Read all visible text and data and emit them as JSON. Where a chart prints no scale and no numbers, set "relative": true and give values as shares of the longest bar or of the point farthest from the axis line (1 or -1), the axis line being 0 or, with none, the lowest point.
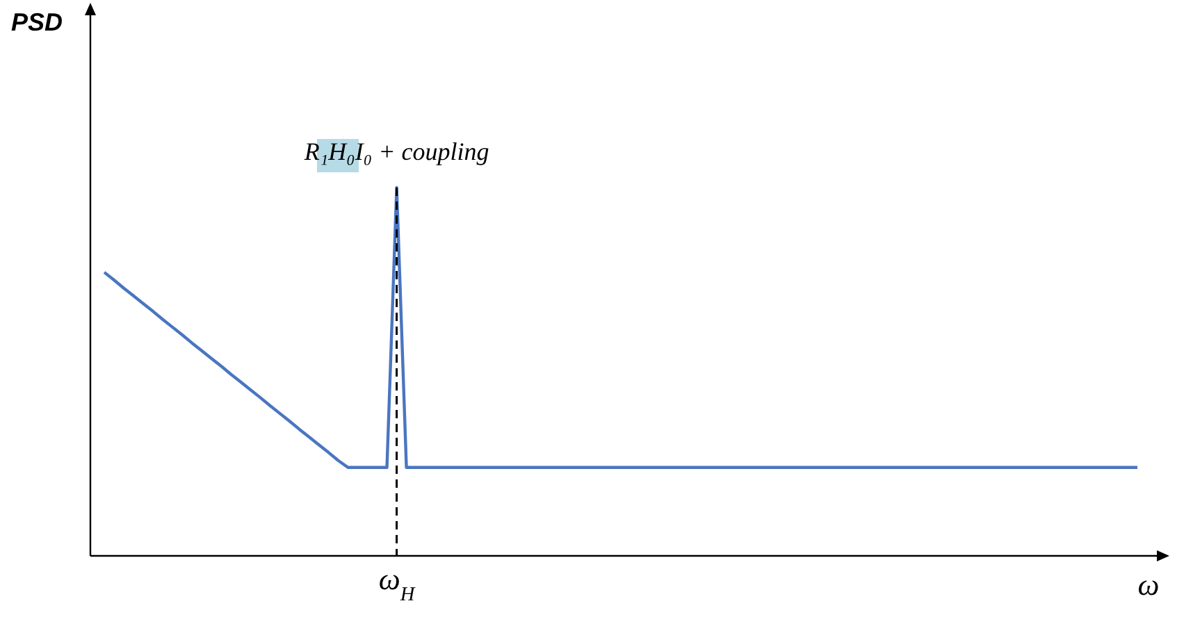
{
  "chart_data": {
    "type": "line",
    "relative": true,
    "xlabel": "ω",
    "grid": false,
    "marker": "none",
    "line_style": "solid",
    "categories": [
      null,
      null,
      null,
      null,
      null,
      null,
      null,
      null,
      null,
      null,
      null,
      null,
      null,
      null,
      null,
      null,
      null,
      null,
      null,
      null,
      null,
      null,
      null,
      null,
      null,
      null,
      null,
      null,
      null,
      null,
      null,
      null,
      null,
      null,
      null,
      null,
      null,
      null,
      null,
      null,
      null,
      null,
      null,
      null,
      null,
      null,
      null,
      null,
      null,
      null,
      null,
      null,
      null,
      null,
      null,
      null,
      null,
      null,
      null,
      null,
      null,
      null,
      null,
      null,
      null,
      null,
      null,
      null,
      null,
      null,
      null,
      null,
      null,
      null,
      null,
      null,
      null,
      null,
      null,
      null,
      null,
      null,
      null,
      null,
      null,
      null,
      null,
      null,
      null,
      null,
      null,
      null,
      null,
      null,
      null,
      null,
      null,
      null,
      null,
      null,
      null,
      null,
      null,
      null,
      null,
      null,
      null
    ],
    "series": [
      {
        "color": "#4a76c0",
        "values": [
          0.77,
          0.749,
          0.727,
          0.706,
          0.685,
          0.664,
          0.642,
          0.621,
          0.6,
          0.578,
          0.557,
          0.536,
          0.515,
          0.493,
          0.472,
          0.451,
          0.43,
          0.408,
          0.387,
          0.366,
          0.344,
          0.323,
          0.302,
          0.281,
          0.259,
          0.24,
          0.24,
          0.24,
          0.24,
          0.24,
          1,
          0.24,
          0.24,
          0.24,
          0.24,
          0.24,
          0.24,
          0.24,
          0.24,
          0.24,
          0.24,
          0.24,
          0.24,
          0.24,
          0.24,
          0.24,
          0.24,
          0.24,
          0.24,
          0.24,
          0.24,
          0.24,
          0.24,
          0.24,
          0.24,
          0.24,
          0.24,
          0.24,
          0.24,
          0.24,
          0.24,
          0.24,
          0.24,
          0.24,
          0.24,
          0.24,
          0.24,
          0.24,
          0.24,
          0.24,
          0.24,
          0.24,
          0.24,
          0.24,
          0.24,
          0.24,
          0.24,
          0.24,
          0.24,
          0.24,
          0.24,
          0.24,
          0.24,
          0.24,
          0.24,
          0.24,
          0.24,
          0.24,
          0.24,
          0.24,
          0.24,
          0.24,
          0.24,
          0.24,
          0.24,
          0.24,
          0.24,
          0.24,
          0.24,
          0.24,
          0.24,
          0.24,
          0.24,
          0.24,
          0.24,
          0.24,
          0.24
        ]
      }
    ],
    "ref_lines": [
      {
        "axis": "x",
        "label": "ω$_{H}$",
        "color": "#000000",
        "line_style": "dashed"
      }
    ],
    "annotations": [
      "PSD",
      {
        "text": "R₁H₀I₀ + coupling",
        "y": 1
      }
    ]
  }
}
